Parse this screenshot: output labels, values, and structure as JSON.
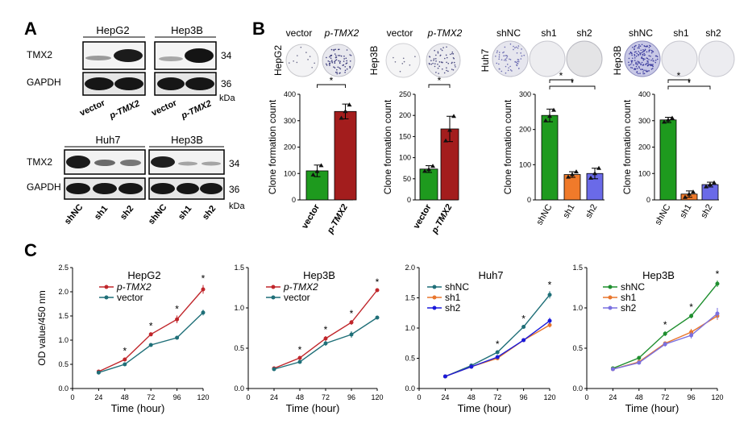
{
  "panels": {
    "A": "A",
    "B": "B",
    "C": "C"
  },
  "colors": {
    "green": "#1e9a1e",
    "red": "#a31d1d",
    "orange": "#f07a2a",
    "blue": "#6a6ae8",
    "teal": "#1f6f78",
    "orange_line": "#e8762d",
    "blue_line": "#1a1adb",
    "dark_red_line": "#c0262b",
    "green_line": "#1f8f2f",
    "purple_line": "#7a70e0"
  },
  "western": {
    "top": {
      "cell_lines": [
        "HepG2",
        "Hep3B"
      ],
      "rows": [
        "TMX2",
        "GAPDH"
      ],
      "mw": [
        "34",
        "36"
      ],
      "kda": "kDa",
      "lanes": [
        "vector",
        "p-TMX2",
        "vector",
        "p-TMX2"
      ]
    },
    "bottom": {
      "cell_lines": [
        "Huh7",
        "Hep3B"
      ],
      "rows": [
        "TMX2",
        "GAPDH"
      ],
      "mw": [
        "34",
        "36"
      ],
      "kda": "kDa",
      "lanes": [
        "shNC",
        "sh1",
        "sh2",
        "shNC",
        "sh1",
        "sh2"
      ]
    }
  },
  "colony_groups": [
    {
      "side_label": "HepG2",
      "labels": [
        "vector",
        "p-TMX2"
      ]
    },
    {
      "side_label": "Hep3B",
      "labels": [
        "vector",
        "p-TMX2"
      ]
    },
    {
      "side_label": "Huh7",
      "labels": [
        "shNC",
        "sh1",
        "sh2"
      ]
    },
    {
      "side_label": "Hep3B",
      "labels": [
        "shNC",
        "sh1",
        "sh2"
      ]
    }
  ],
  "chart_data": [
    {
      "type": "bar",
      "id": "b1",
      "ylabel": "Clone formation count",
      "ylim": [
        0,
        400
      ],
      "yticks": [
        0,
        100,
        200,
        300,
        400
      ],
      "categories": [
        "vector",
        "p-TMX2"
      ],
      "values": [
        110,
        335
      ],
      "errors": [
        22,
        28
      ],
      "colors": [
        "green",
        "red"
      ],
      "points": [
        [
          95,
          108,
          130
        ],
        [
          310,
          335,
          360
        ]
      ],
      "sig": [
        {
          "from": 0,
          "to": 1,
          "label": "*"
        }
      ]
    },
    {
      "type": "bar",
      "id": "b2",
      "ylabel": "Clone formation count",
      "ylim": [
        0,
        250
      ],
      "yticks": [
        0,
        50,
        100,
        150,
        200,
        250
      ],
      "categories": [
        "vector",
        "p-TMX2"
      ],
      "values": [
        73,
        168
      ],
      "errors": [
        8,
        30
      ],
      "colors": [
        "green",
        "red"
      ],
      "points": [
        [
          68,
          72,
          80
        ],
        [
          140,
          165,
          198
        ]
      ],
      "sig": [
        {
          "from": 0,
          "to": 1,
          "label": "*"
        }
      ]
    },
    {
      "type": "bar",
      "id": "b3",
      "ylabel": "Clone formation count",
      "ylim": [
        0,
        300
      ],
      "yticks": [
        0,
        100,
        200,
        300
      ],
      "categories": [
        "shNC",
        "sh1",
        "sh2"
      ],
      "values": [
        240,
        72,
        75
      ],
      "errors": [
        18,
        8,
        15
      ],
      "colors": [
        "green",
        "orange",
        "blue"
      ],
      "points": [
        [
          225,
          238,
          255
        ],
        [
          65,
          72,
          80
        ],
        [
          62,
          75,
          90
        ]
      ],
      "sig": [
        {
          "from": 0,
          "to": 1,
          "label": "*"
        },
        {
          "from": 0,
          "to": 2,
          "label": "*"
        }
      ]
    },
    {
      "type": "bar",
      "id": "b4",
      "ylabel": "Clone formation count",
      "ylim": [
        0,
        400
      ],
      "yticks": [
        0,
        100,
        200,
        300,
        400
      ],
      "categories": [
        "shNC",
        "sh1",
        "sh2"
      ],
      "values": [
        303,
        22,
        58
      ],
      "errors": [
        10,
        12,
        9
      ],
      "colors": [
        "green",
        "orange",
        "blue"
      ],
      "points": [
        [
          295,
          303,
          310
        ],
        [
          10,
          22,
          30
        ],
        [
          50,
          58,
          65
        ]
      ],
      "sig": [
        {
          "from": 0,
          "to": 1,
          "label": "*"
        },
        {
          "from": 0,
          "to": 2,
          "label": "*"
        }
      ]
    },
    {
      "type": "line",
      "id": "l1",
      "title": "HepG2",
      "ylabel": "OD value/450 nm",
      "xlabel": "Time (hour)",
      "x": [
        0,
        24,
        48,
        72,
        96,
        120
      ],
      "ylim": [
        0,
        2.5
      ],
      "yticks": [
        0.0,
        0.5,
        1.0,
        1.5,
        2.0,
        2.5
      ],
      "stars_at": [
        48,
        72,
        96,
        120
      ],
      "series": [
        {
          "name": "p-TMX2",
          "color": "dark_red_line",
          "x": [
            24,
            48,
            72,
            96,
            120
          ],
          "y": [
            0.35,
            0.6,
            1.12,
            1.43,
            2.05
          ],
          "err": [
            0.02,
            0.04,
            0.04,
            0.08,
            0.09
          ]
        },
        {
          "name": "vector",
          "color": "teal",
          "x": [
            24,
            48,
            72,
            96,
            120
          ],
          "y": [
            0.33,
            0.5,
            0.9,
            1.05,
            1.57
          ],
          "err": [
            0.02,
            0.03,
            0.03,
            0.04,
            0.06
          ]
        }
      ]
    },
    {
      "type": "line",
      "id": "l2",
      "title": "Hep3B",
      "ylabel": "",
      "xlabel": "Time (hour)",
      "x": [
        0,
        24,
        48,
        72,
        96,
        120
      ],
      "ylim": [
        0,
        1.5
      ],
      "yticks": [
        0.0,
        0.5,
        1.0,
        1.5
      ],
      "stars_at": [
        48,
        72,
        96,
        120
      ],
      "series": [
        {
          "name": "p-TMX2",
          "color": "dark_red_line",
          "x": [
            24,
            48,
            72,
            96,
            120
          ],
          "y": [
            0.25,
            0.38,
            0.62,
            0.82,
            1.22
          ],
          "err": [
            0.01,
            0.02,
            0.03,
            0.03,
            0.02
          ]
        },
        {
          "name": "vector",
          "color": "teal",
          "x": [
            24,
            48,
            72,
            96,
            120
          ],
          "y": [
            0.24,
            0.33,
            0.56,
            0.67,
            0.88
          ],
          "err": [
            0.01,
            0.02,
            0.03,
            0.04,
            0.02
          ]
        }
      ]
    },
    {
      "type": "line",
      "id": "l3",
      "title": "Huh7",
      "ylabel": "",
      "xlabel": "Time (hour)",
      "x": [
        0,
        24,
        48,
        72,
        96,
        120
      ],
      "ylim": [
        0,
        2.0
      ],
      "yticks": [
        0.0,
        0.5,
        1.0,
        1.5,
        2.0
      ],
      "stars_at": [
        72,
        96,
        120
      ],
      "series": [
        {
          "name": "shNC",
          "color": "teal",
          "x": [
            24,
            48,
            72,
            96,
            120
          ],
          "y": [
            0.2,
            0.38,
            0.6,
            1.02,
            1.55
          ],
          "err": [
            0.01,
            0.02,
            0.03,
            0.03,
            0.06
          ]
        },
        {
          "name": "sh1",
          "color": "orange_line",
          "x": [
            24,
            48,
            72,
            96,
            120
          ],
          "y": [
            0.2,
            0.36,
            0.5,
            0.8,
            1.05
          ],
          "err": [
            0.01,
            0.02,
            0.02,
            0.03,
            0.04
          ]
        },
        {
          "name": "sh2",
          "color": "blue_line",
          "x": [
            24,
            48,
            72,
            96,
            120
          ],
          "y": [
            0.2,
            0.36,
            0.52,
            0.8,
            1.12
          ],
          "err": [
            0.01,
            0.02,
            0.02,
            0.03,
            0.05
          ]
        }
      ]
    },
    {
      "type": "line",
      "id": "l4",
      "title": "Hep3B",
      "ylabel": "",
      "xlabel": "Time (hour)",
      "x": [
        0,
        24,
        48,
        72,
        96,
        120
      ],
      "ylim": [
        0,
        1.5
      ],
      "yticks": [
        0.0,
        0.5,
        1.0,
        1.5
      ],
      "stars_at": [
        72,
        96,
        120
      ],
      "series": [
        {
          "name": "shNC",
          "color": "green_line",
          "x": [
            24,
            48,
            72,
            96,
            120
          ],
          "y": [
            0.25,
            0.38,
            0.68,
            0.9,
            1.3
          ],
          "err": [
            0.01,
            0.02,
            0.03,
            0.03,
            0.04
          ]
        },
        {
          "name": "sh1",
          "color": "orange_line",
          "x": [
            24,
            48,
            72,
            96,
            120
          ],
          "y": [
            0.24,
            0.33,
            0.56,
            0.7,
            0.9
          ],
          "err": [
            0.01,
            0.02,
            0.02,
            0.04,
            0.05
          ]
        },
        {
          "name": "sh2",
          "color": "purple_line",
          "x": [
            24,
            48,
            72,
            96,
            120
          ],
          "y": [
            0.24,
            0.32,
            0.55,
            0.66,
            0.93
          ],
          "err": [
            0.01,
            0.02,
            0.03,
            0.04,
            0.07
          ]
        }
      ]
    }
  ]
}
